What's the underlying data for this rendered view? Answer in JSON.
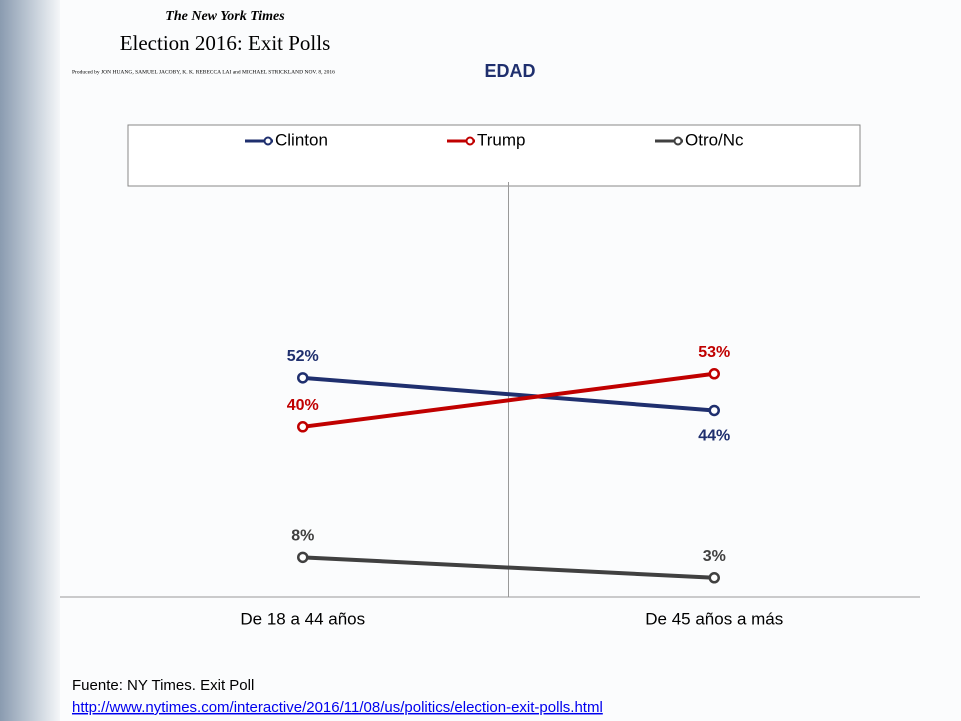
{
  "header": {
    "masthead": "The New York Times",
    "title": "Election 2016: Exit Polls",
    "credits": "Produced by JON HUANG, SAMUEL JACOBY, K. K. REBECCA LAI and MICHAEL STRICKLAND   NOV. 8, 2016"
  },
  "chart_data": {
    "type": "line",
    "title": "EDAD",
    "categories": [
      "De 18 a 44 años",
      "De 45 años a más"
    ],
    "series": [
      {
        "name": "Clinton",
        "color": "#1f2f6e",
        "values": [
          52,
          44
        ],
        "value_labels": [
          "52%",
          "44%"
        ]
      },
      {
        "name": "Trump",
        "color": "#c00000",
        "values": [
          40,
          53
        ],
        "value_labels": [
          "40%",
          "53%"
        ]
      },
      {
        "name": "Otro/Nc",
        "color": "#404040",
        "values": [
          8,
          3
        ],
        "value_labels": [
          "8%",
          "3%"
        ]
      }
    ],
    "ylim": [
      0,
      100
    ],
    "legend": "top"
  },
  "footer": {
    "source": "Fuente: NY Times. Exit Poll",
    "link": "http://www.nytimes.com/interactive/2016/11/08/us/politics/election-exit-polls.html"
  }
}
